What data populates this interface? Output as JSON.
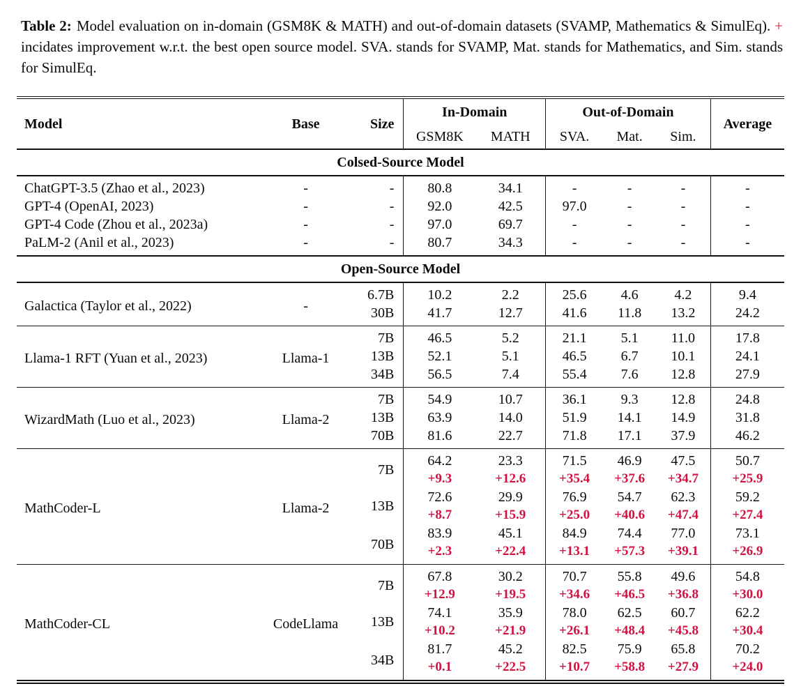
{
  "caption": {
    "label": "Table 2:",
    "before_plus": "Model evaluation on in-domain (GSM8K & MATH) and out-of-domain datasets (SVAMP, Mathematics & SimulEq).",
    "plus": "+",
    "after_plus": "incidates improvement w.r.t. the best open source model. SVA. stands for SVAMP, Mat. stands for Mathematics, and Sim. stands for SimulEq."
  },
  "header": {
    "model": "Model",
    "base": "Base",
    "size": "Size",
    "in_domain": "In-Domain",
    "out_of_domain": "Out-of-Domain",
    "gsm8k": "GSM8K",
    "math": "MATH",
    "sva": "SVA.",
    "mat": "Mat.",
    "sim": "Sim.",
    "average": "Average"
  },
  "table": {
    "sections": [
      {
        "title": "Colsed-Source Model",
        "rule_between_groups": false,
        "groups": [
          {
            "model": "ChatGPT-3.5 (Zhao et al., 2023)",
            "base": "-",
            "rows": [
              {
                "size": "-",
                "values": [
                  "80.8",
                  "34.1",
                  "-",
                  "-",
                  "-",
                  "-"
                ]
              }
            ]
          },
          {
            "model": "GPT-4 (OpenAI, 2023)",
            "base": "-",
            "rows": [
              {
                "size": "-",
                "values": [
                  "92.0",
                  "42.5",
                  "97.0",
                  "-",
                  "-",
                  "-"
                ]
              }
            ]
          },
          {
            "model": "GPT-4 Code (Zhou et al., 2023a)",
            "base": "-",
            "rows": [
              {
                "size": "-",
                "values": [
                  "97.0",
                  "69.7",
                  "-",
                  "-",
                  "-",
                  "-"
                ]
              }
            ]
          },
          {
            "model": "PaLM-2 (Anil et al., 2023)",
            "base": "-",
            "rows": [
              {
                "size": "-",
                "values": [
                  "80.7",
                  "34.3",
                  "-",
                  "-",
                  "-",
                  "-"
                ]
              }
            ]
          }
        ]
      },
      {
        "title": "Open-Source Model",
        "rule_between_groups": true,
        "groups": [
          {
            "model": "Galactica (Taylor et al., 2022)",
            "base": "-",
            "rows": [
              {
                "size": "6.7B",
                "values": [
                  "10.2",
                  "2.2",
                  "25.6",
                  "4.6",
                  "4.2",
                  "9.4"
                ]
              },
              {
                "size": "30B",
                "values": [
                  "41.7",
                  "12.7",
                  "41.6",
                  "11.8",
                  "13.2",
                  "24.2"
                ]
              }
            ]
          },
          {
            "model": "Llama-1 RFT (Yuan et al., 2023)",
            "base": "Llama-1",
            "rows": [
              {
                "size": "7B",
                "values": [
                  "46.5",
                  "5.2",
                  "21.1",
                  "5.1",
                  "11.0",
                  "17.8"
                ]
              },
              {
                "size": "13B",
                "values": [
                  "52.1",
                  "5.1",
                  "46.5",
                  "6.7",
                  "10.1",
                  "24.1"
                ]
              },
              {
                "size": "34B",
                "values": [
                  "56.5",
                  "7.4",
                  "55.4",
                  "7.6",
                  "12.8",
                  "27.9"
                ]
              }
            ]
          },
          {
            "model": "WizardMath (Luo et al., 2023)",
            "base": "Llama-2",
            "rows": [
              {
                "size": "7B",
                "values": [
                  "54.9",
                  "10.7",
                  "36.1",
                  "9.3",
                  "12.8",
                  "24.8"
                ]
              },
              {
                "size": "13B",
                "values": [
                  "63.9",
                  "14.0",
                  "51.9",
                  "14.1",
                  "14.9",
                  "31.8"
                ]
              },
              {
                "size": "70B",
                "values": [
                  "81.6",
                  "22.7",
                  "71.8",
                  "17.1",
                  "37.9",
                  "46.2"
                ]
              }
            ]
          },
          {
            "model": "MathCoder-L",
            "base": "Llama-2",
            "rows": [
              {
                "size": "7B",
                "values": [
                  "64.2",
                  "23.3",
                  "71.5",
                  "46.9",
                  "47.5",
                  "50.7"
                ],
                "delta": [
                  "+9.3",
                  "+12.6",
                  "+35.4",
                  "+37.6",
                  "+34.7",
                  "+25.9"
                ]
              },
              {
                "size": "13B",
                "values": [
                  "72.6",
                  "29.9",
                  "76.9",
                  "54.7",
                  "62.3",
                  "59.2"
                ],
                "delta": [
                  "+8.7",
                  "+15.9",
                  "+25.0",
                  "+40.6",
                  "+47.4",
                  "+27.4"
                ]
              },
              {
                "size": "70B",
                "values": [
                  "83.9",
                  "45.1",
                  "84.9",
                  "74.4",
                  "77.0",
                  "73.1"
                ],
                "delta": [
                  "+2.3",
                  "+22.4",
                  "+13.1",
                  "+57.3",
                  "+39.1",
                  "+26.9"
                ]
              }
            ]
          },
          {
            "model": "MathCoder-CL",
            "base": "CodeLlama",
            "rows": [
              {
                "size": "7B",
                "values": [
                  "67.8",
                  "30.2",
                  "70.7",
                  "55.8",
                  "49.6",
                  "54.8"
                ],
                "delta": [
                  "+12.9",
                  "+19.5",
                  "+34.6",
                  "+46.5",
                  "+36.8",
                  "+30.0"
                ]
              },
              {
                "size": "13B",
                "values": [
                  "74.1",
                  "35.9",
                  "78.0",
                  "62.5",
                  "60.7",
                  "62.2"
                ],
                "delta": [
                  "+10.2",
                  "+21.9",
                  "+26.1",
                  "+48.4",
                  "+45.8",
                  "+30.4"
                ]
              },
              {
                "size": "34B",
                "values": [
                  "81.7",
                  "45.2",
                  "82.5",
                  "75.9",
                  "65.8",
                  "70.2"
                ],
                "delta": [
                  "+0.1",
                  "+22.5",
                  "+10.7",
                  "+58.8",
                  "+27.9",
                  "+24.0"
                ]
              }
            ]
          }
        ]
      }
    ]
  },
  "colors": {
    "delta_red": "#d11140",
    "plus_red": "#e01a22"
  }
}
